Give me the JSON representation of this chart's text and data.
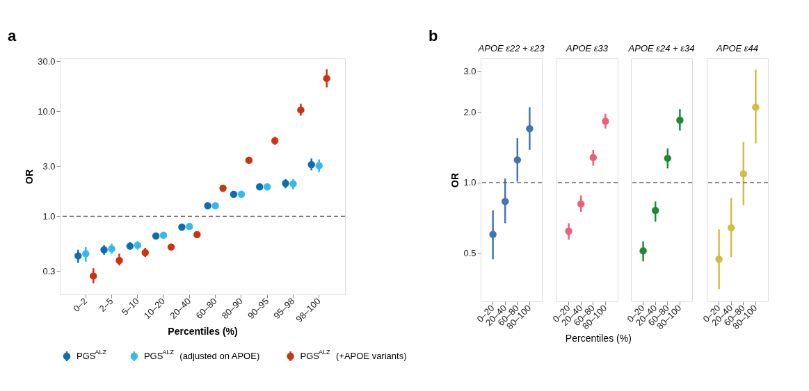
{
  "chart_data": [
    {
      "type": "scatter",
      "annotations": [
        "a"
      ],
      "xlabel": "Percentiles (%)",
      "ylabel": "OR",
      "log": true,
      "grid": false,
      "legend": "bottom",
      "marker": "circle",
      "categories": [
        "0–2",
        "2–5",
        "5–10",
        "10–20",
        "20–40",
        "60–80",
        "80–90",
        "90–95",
        "95–98",
        "98–100"
      ],
      "ylim": [
        0.18,
        32
      ],
      "yticks": [
        0.3,
        {
          "value": 1,
          "label": "1.0"
        },
        {
          "value": 3,
          "label": "3.0"
        },
        {
          "value": 10,
          "label": "10.0"
        },
        {
          "value": 30,
          "label": "30.0"
        }
      ],
      "ref_lines": [
        {
          "axis": "y",
          "value": 1,
          "label": null,
          "color": "#555555",
          "line_style": "dashed"
        }
      ],
      "series": [
        {
          "name": "PGS$^{ALZ}$",
          "color": "#0b6db3",
          "values": [
            0.42,
            0.48,
            0.52,
            0.65,
            0.79,
            1.26,
            1.62,
            1.91,
            2.06,
            3.11
          ],
          "errors": [
            [
              0.36,
              0.48
            ],
            [
              0.43,
              0.53
            ],
            [
              0.48,
              0.57
            ],
            null,
            null,
            null,
            null,
            [
              1.77,
              2.04
            ],
            [
              1.85,
              2.26
            ],
            [
              2.74,
              3.55
            ]
          ]
        },
        {
          "name": "PGS$^{ALZ}$ (adjusted on APOE)",
          "color": "#35b9ec",
          "values": [
            0.44,
            0.49,
            0.53,
            0.66,
            0.8,
            1.26,
            1.62,
            1.91,
            2.04,
            3.04
          ],
          "errors": [
            [
              0.37,
              0.51
            ],
            [
              0.44,
              0.55
            ],
            [
              0.48,
              0.58
            ],
            null,
            null,
            null,
            null,
            [
              1.76,
              2.05
            ],
            [
              1.81,
              2.26
            ],
            [
              2.63,
              3.48
            ]
          ]
        },
        {
          "name": "PGS$^{ALZ}$ (+APOE variants)",
          "color": "#cc3311",
          "values": [
            0.27,
            0.38,
            0.45,
            0.51,
            0.67,
            1.85,
            3.42,
            5.25,
            10.3,
            20.6
          ],
          "errors": [
            [
              0.23,
              0.32
            ],
            [
              0.34,
              0.44
            ],
            [
              0.41,
              0.5
            ],
            null,
            null,
            null,
            null,
            [
              4.79,
              5.74
            ],
            [
              9.1,
              11.8
            ],
            [
              16.9,
              25.2
            ]
          ]
        }
      ]
    },
    {
      "type": "scatter",
      "title": "APOE ε22 + ε23",
      "annotations": [
        "b"
      ],
      "xlabel": "Percentiles (%)",
      "ylabel": "OR",
      "log": true,
      "grid": false,
      "marker": "circle",
      "categories": [
        "0–20",
        "20–40",
        "60–80",
        "80–100"
      ],
      "ylim": [
        0.31,
        3.4
      ],
      "yticks": [
        0.5,
        {
          "value": 1,
          "label": "1.0"
        },
        {
          "value": 2,
          "label": "2.0"
        },
        {
          "value": 3,
          "label": "3.0"
        }
      ],
      "ref_lines": [
        {
          "axis": "y",
          "value": 1,
          "label": null,
          "color": "#555555",
          "line_style": "dashed"
        }
      ],
      "series": [
        {
          "color": "#4575aa",
          "values": [
            0.6,
            0.83,
            1.25,
            1.7
          ],
          "errors": [
            [
              0.47,
              0.76
            ],
            [
              0.67,
              1.04
            ],
            [
              1.01,
              1.55
            ],
            [
              1.38,
              2.1
            ]
          ]
        }
      ]
    },
    {
      "type": "scatter",
      "title": "APOE ε33",
      "log": true,
      "grid": false,
      "marker": "circle",
      "tick_labels": "x",
      "categories": [
        "0–20",
        "20–40",
        "60–80",
        "80–100"
      ],
      "ylim": [
        0.31,
        3.4
      ],
      "ref_lines": [
        {
          "axis": "y",
          "value": 1,
          "label": null,
          "color": "#555555",
          "line_style": "dashed"
        }
      ],
      "series": [
        {
          "color": "#ea6277",
          "values": [
            0.62,
            0.81,
            1.28,
            1.83
          ],
          "errors": [
            [
              0.57,
              0.67
            ],
            [
              0.75,
              0.88
            ],
            [
              1.18,
              1.38
            ],
            [
              1.7,
              1.97
            ]
          ]
        }
      ]
    },
    {
      "type": "scatter",
      "title": "APOE ε24 + ε34",
      "log": true,
      "grid": false,
      "marker": "circle",
      "tick_labels": "x",
      "categories": [
        "0–20",
        "20–40",
        "60–80",
        "80–100"
      ],
      "ylim": [
        0.31,
        3.4
      ],
      "ref_lines": [
        {
          "axis": "y",
          "value": 1,
          "label": null,
          "color": "#555555",
          "line_style": "dashed"
        }
      ],
      "series": [
        {
          "color": "#1e8a36",
          "values": [
            0.51,
            0.76,
            1.27,
            1.85
          ],
          "errors": [
            [
              0.46,
              0.56
            ],
            [
              0.68,
              0.83
            ],
            [
              1.15,
              1.4
            ],
            [
              1.67,
              2.06
            ]
          ]
        }
      ]
    },
    {
      "type": "scatter",
      "title": "APOE ε44",
      "log": true,
      "grid": false,
      "marker": "circle",
      "tick_labels": "x",
      "categories": [
        "0–20",
        "20–40",
        "60–80",
        "80–100"
      ],
      "ylim": [
        0.31,
        3.4
      ],
      "ref_lines": [
        {
          "axis": "y",
          "value": 1,
          "label": null,
          "color": "#555555",
          "line_style": "dashed"
        }
      ],
      "series": [
        {
          "color": "#d3bd45",
          "values": [
            0.47,
            0.64,
            1.09,
            2.1
          ],
          "errors": [
            [
              0.35,
              0.63
            ],
            [
              0.48,
              0.86
            ],
            [
              0.8,
              1.49
            ],
            [
              1.47,
              3.04
            ]
          ]
        }
      ]
    }
  ]
}
